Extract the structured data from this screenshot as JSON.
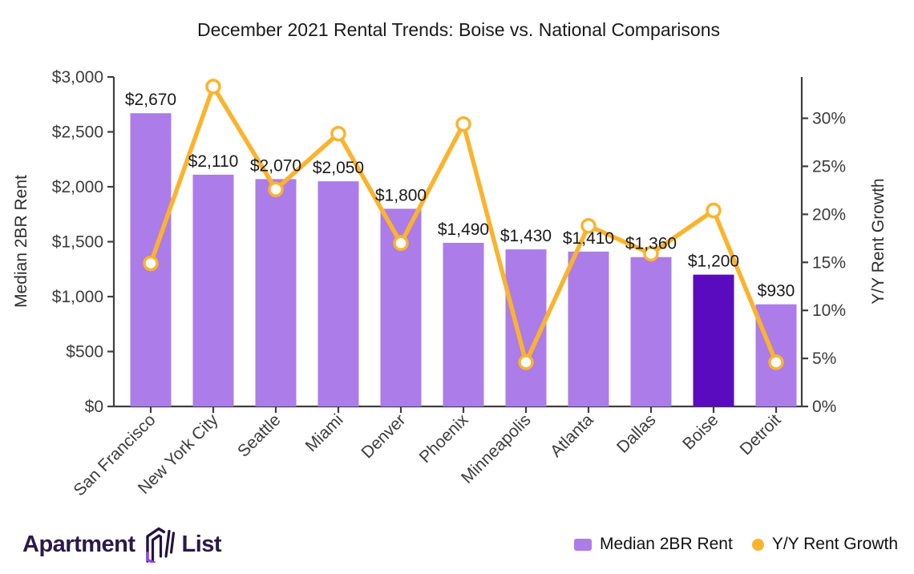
{
  "title": "December 2021 Rental Trends: Boise vs. National Comparisons",
  "chart_data": {
    "type": "combo bar+line",
    "title": "December 2021 Rental Trends: Boise vs. National Comparisons",
    "categories": [
      "San Francisco",
      "New York City",
      "Seattle",
      "Miami",
      "Denver",
      "Phoenix",
      "Minneapolis",
      "Atlanta",
      "Dallas",
      "Boise",
      "Detroit"
    ],
    "series": [
      {
        "name": "Median 2BR Rent",
        "type": "bar",
        "axis": "left",
        "values": [
          2670,
          2110,
          2070,
          2050,
          1800,
          1490,
          1430,
          1410,
          1360,
          1200,
          930
        ],
        "labels": [
          "$2,670",
          "$2,110",
          "$2,070",
          "$2,050",
          "$1,800",
          "$1,490",
          "$1,430",
          "$1,410",
          "$1,360",
          "$1,200",
          "$930"
        ]
      },
      {
        "name": "Y/Y Rent Growth",
        "type": "line",
        "axis": "right",
        "values": [
          14.9,
          33.3,
          22.6,
          28.4,
          17.0,
          29.4,
          4.6,
          18.8,
          15.9,
          20.4,
          4.6
        ]
      }
    ],
    "highlight_category": "Boise",
    "left_axis": {
      "label": "Median 2BR Rent",
      "tick_values": [
        0,
        500,
        1000,
        1500,
        2000,
        2500,
        3000
      ],
      "ticks": [
        "$0",
        "$500",
        "$1,000",
        "$1,500",
        "$2,000",
        "$2,500",
        "$3,000"
      ],
      "max": 3000
    },
    "right_axis": {
      "label": "Y/Y Rent Growth",
      "tick_values": [
        0,
        5,
        10,
        15,
        20,
        25,
        30
      ],
      "ticks": [
        "0%",
        "5%",
        "10%",
        "15%",
        "20%",
        "25%",
        "30%"
      ],
      "max": 34.3
    },
    "legend_position": "bottom-right",
    "grid": false
  },
  "legend": {
    "bar_label": "Median 2BR Rent",
    "line_label": "Y/Y Rent Growth"
  },
  "branding": {
    "word1": "Apartment",
    "word2": "List"
  },
  "colors": {
    "bar": "#AC7CE8",
    "bar_highlight": "#5A0ABF",
    "line": "#FBB32E",
    "marker_fill": "#FFFFFF",
    "axis": "#3F3F3F",
    "tick_text": "#3C3C3C",
    "label_text": "#1A1A1A",
    "logo_text": "#2A1A4A",
    "logo_accent": "#9146F6"
  }
}
